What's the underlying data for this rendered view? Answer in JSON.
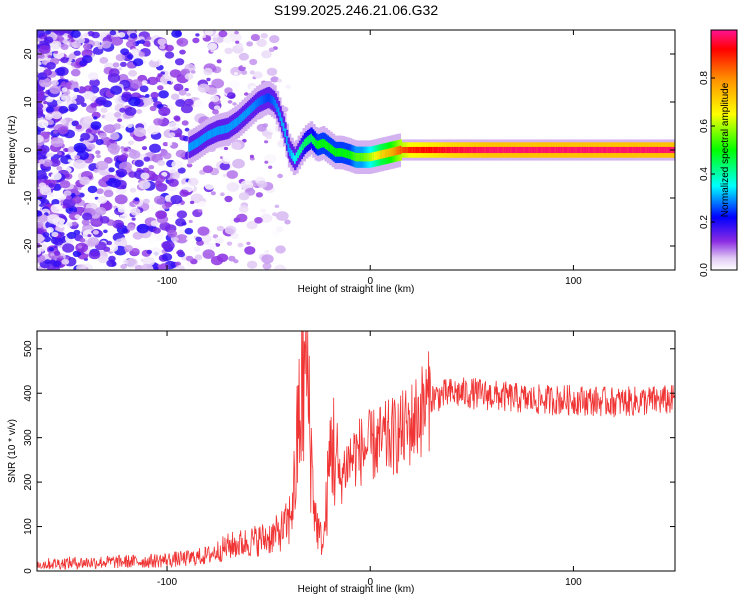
{
  "figure_title": "S199.2025.246.21.06.G32",
  "chart_data": [
    {
      "type": "heatmap",
      "title": "S199.2025.246.21.06.G32",
      "xlabel": "Height of straight line (km)",
      "ylabel": "Frequency (Hz)",
      "xlim": [
        -164,
        150
      ],
      "ylim": [
        -25,
        25
      ],
      "x_ticks": [
        "-100",
        "0",
        "100"
      ],
      "y_ticks": [
        "-20",
        "-10",
        "0",
        "10",
        "20"
      ],
      "colorbar": {
        "label": "Normalized spectral amplitude",
        "range": [
          0,
          1
        ],
        "ticks": [
          "0.0",
          "0.2",
          "0.4",
          "0.6",
          "0.8"
        ]
      },
      "ridge": {
        "x": [
          -89,
          -85,
          -80,
          -75,
          -70,
          -65,
          -60,
          -55,
          -50,
          -47,
          -45,
          -42,
          -40,
          -37,
          -35,
          -32,
          -29,
          -26,
          -23,
          -20,
          -17,
          -14,
          -10,
          -7,
          -4,
          0,
          5,
          10,
          15,
          20,
          40,
          60,
          80,
          100,
          120,
          150
        ],
        "y": [
          0.5,
          1.5,
          3,
          4,
          4.5,
          6,
          8,
          10,
          11,
          10,
          8,
          4,
          0,
          -2,
          -0.5,
          1.5,
          2.5,
          1,
          1.5,
          0.5,
          -0.5,
          -0.5,
          -1,
          -1.5,
          -1.5,
          -1.5,
          -1,
          -0.5,
          0,
          0,
          0,
          0,
          0,
          0,
          0,
          0
        ],
        "amplitude": [
          0.3,
          0.3,
          0.3,
          0.3,
          0.3,
          0.3,
          0.3,
          0.28,
          0.25,
          0.28,
          0.3,
          0.32,
          0.3,
          0.35,
          0.4,
          0.45,
          0.45,
          0.5,
          0.5,
          0.5,
          0.5,
          0.5,
          0.5,
          0.55,
          0.55,
          0.6,
          0.7,
          0.75,
          0.85,
          0.9,
          0.95,
          0.98,
          0.98,
          0.98,
          0.98,
          0.98
        ]
      },
      "noise": {
        "x_range": [
          -164,
          -40
        ],
        "density": "high below -90, sparse toward -40",
        "amplitude_range": [
          0,
          0.2
        ]
      }
    },
    {
      "type": "line",
      "xlabel": "Height of straight line (km)",
      "ylabel": "SNR (10 * v/v)",
      "xlim": [
        -164,
        150
      ],
      "ylim": [
        0,
        540
      ],
      "x_ticks": [
        "-100",
        "0",
        "100"
      ],
      "y_ticks": [
        "0",
        "100",
        "200",
        "300",
        "400",
        "500"
      ],
      "color": "#f03434",
      "series": [
        {
          "name": "SNR",
          "x": [
            -164,
            -150,
            -130,
            -110,
            -90,
            -80,
            -70,
            -60,
            -50,
            -45,
            -40,
            -37,
            -35,
            -33,
            -31,
            -29,
            -27,
            -25,
            -23,
            -21,
            -19,
            -17,
            -15,
            -12,
            -8,
            -5,
            0,
            5,
            10,
            15,
            20,
            25,
            30,
            40,
            50,
            60,
            70,
            80,
            100,
            120,
            150
          ],
          "y": [
            15,
            18,
            20,
            22,
            28,
            35,
            55,
            65,
            75,
            85,
            110,
            200,
            350,
            420,
            480,
            250,
            120,
            80,
            60,
            180,
            300,
            250,
            200,
            240,
            260,
            270,
            280,
            290,
            300,
            310,
            330,
            360,
            390,
            400,
            400,
            395,
            390,
            385,
            385,
            380,
            385
          ]
        }
      ]
    }
  ]
}
